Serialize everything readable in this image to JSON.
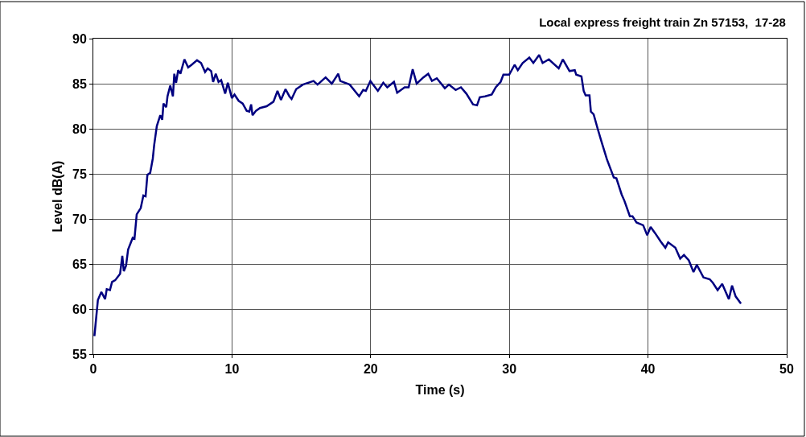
{
  "chart_data": {
    "type": "line",
    "title": "Local express freight train Zn 57153,  17-28",
    "xlabel": "Time (s)",
    "ylabel": "Level dB(A)",
    "xlim": [
      0,
      50
    ],
    "xticks": [
      0,
      10,
      20,
      30,
      40,
      50
    ],
    "ylim": [
      55,
      90
    ],
    "yticks": [
      55,
      60,
      65,
      70,
      75,
      80,
      85,
      90
    ],
    "grid": true,
    "marker": "none",
    "line_style": "solid",
    "series": [
      {
        "color": "#000080",
        "x": [
          0.08,
          0.33,
          0.58,
          0.85,
          0.97,
          1.2,
          1.35,
          1.58,
          1.93,
          2.09,
          2.2,
          2.36,
          2.51,
          2.84,
          2.97,
          3.13,
          3.42,
          3.61,
          3.77,
          3.9,
          4.1,
          4.29,
          4.39,
          4.58,
          4.83,
          4.97,
          5.06,
          5.26,
          5.35,
          5.55,
          5.74,
          5.84,
          5.97,
          6.12,
          6.28,
          6.57,
          6.84,
          7.09,
          7.48,
          7.77,
          8.06,
          8.25,
          8.5,
          8.64,
          8.83,
          9.03,
          9.22,
          9.51,
          9.7,
          9.99,
          10.18,
          10.48,
          10.77,
          11.06,
          11.25,
          11.38,
          11.48,
          11.73,
          12.02,
          12.5,
          12.99,
          13.28,
          13.53,
          13.86,
          14.14,
          14.3,
          14.63,
          15.11,
          15.88,
          16.17,
          16.75,
          17.2,
          17.66,
          17.81,
          18.49,
          19.17,
          19.46,
          19.65,
          19.98,
          20.52,
          20.91,
          21.2,
          21.68,
          21.91,
          22.45,
          22.74,
          23.03,
          23.32,
          23.8,
          24.15,
          24.42,
          24.77,
          25.35,
          25.64,
          26.13,
          26.51,
          26.9,
          27.38,
          27.67,
          27.87,
          28.25,
          28.73,
          29.02,
          29.37,
          29.57,
          29.99,
          30.38,
          30.61,
          30.96,
          31.44,
          31.73,
          32.15,
          32.4,
          32.85,
          33.56,
          33.86,
          34.34,
          34.72,
          34.82,
          35.2,
          35.36,
          35.5,
          35.78,
          35.88,
          36.08,
          36.37,
          36.66,
          37.04,
          37.53,
          37.72,
          38.1,
          38.3,
          38.69,
          38.88,
          39.17,
          39.65,
          39.94,
          40.19,
          40.52,
          40.91,
          41.25,
          41.45,
          41.97,
          42.32,
          42.59,
          42.94,
          43.28,
          43.52,
          44.0,
          44.45,
          44.68,
          45.02,
          45.35,
          45.83,
          46.06,
          46.32,
          46.7
        ],
        "values": [
          57.0,
          61.0,
          61.9,
          61.1,
          62.2,
          62.1,
          63.0,
          63.2,
          63.9,
          65.9,
          64.2,
          64.8,
          66.6,
          67.9,
          67.8,
          70.5,
          71.2,
          72.6,
          72.5,
          74.9,
          75.1,
          76.7,
          78.2,
          80.3,
          81.5,
          81.0,
          82.8,
          82.4,
          83.6,
          84.8,
          83.6,
          86.1,
          85.1,
          86.5,
          86.1,
          87.7,
          86.8,
          87.1,
          87.6,
          87.3,
          86.3,
          86.7,
          86.4,
          85.2,
          86.1,
          85.2,
          85.4,
          83.9,
          85.1,
          83.4,
          83.8,
          83.1,
          82.8,
          82.0,
          81.9,
          82.7,
          81.5,
          82.0,
          82.3,
          82.5,
          83.0,
          84.2,
          83.2,
          84.4,
          83.6,
          83.3,
          84.4,
          84.9,
          85.3,
          84.9,
          85.7,
          85.0,
          86.1,
          85.3,
          84.9,
          83.6,
          84.3,
          84.2,
          85.3,
          84.2,
          85.1,
          84.6,
          85.2,
          84.0,
          84.6,
          84.6,
          86.6,
          85.0,
          85.7,
          86.1,
          85.3,
          85.6,
          84.5,
          84.9,
          84.3,
          84.6,
          83.9,
          82.7,
          82.6,
          83.5,
          83.6,
          83.8,
          84.6,
          85.2,
          86.0,
          86.0,
          87.1,
          86.5,
          87.3,
          87.9,
          87.3,
          88.2,
          87.3,
          87.7,
          86.7,
          87.7,
          86.4,
          86.5,
          86.0,
          85.8,
          84.2,
          83.7,
          83.7,
          81.9,
          81.6,
          80.0,
          78.5,
          76.6,
          74.6,
          74.5,
          72.7,
          72.0,
          70.3,
          70.3,
          69.6,
          69.3,
          68.2,
          69.1,
          68.4,
          67.5,
          66.8,
          67.4,
          66.8,
          65.6,
          66.0,
          65.4,
          64.1,
          64.9,
          63.5,
          63.3,
          62.9,
          62.1,
          62.8,
          61.1,
          62.6,
          61.4,
          60.6
        ]
      }
    ]
  }
}
